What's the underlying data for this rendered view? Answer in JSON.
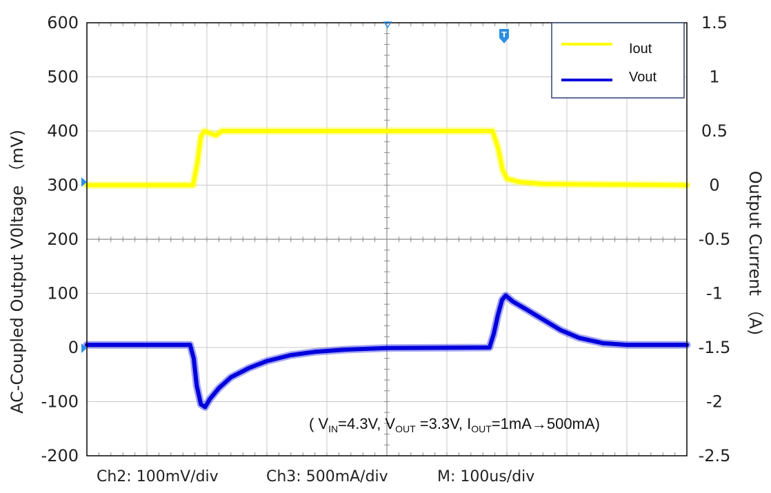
{
  "chart_data": {
    "type": "line",
    "y_left": {
      "label": "AC-Coupled Output V0ltage （mV)",
      "ticks": [
        "600",
        "500",
        "400",
        "300",
        "200",
        "100",
        "0",
        "-100",
        "-200"
      ],
      "lim": [
        -200,
        600
      ]
    },
    "y_right": {
      "label": "Output Current （A)",
      "ticks": [
        "1.5",
        "1",
        "0.5",
        "0",
        "-0.5",
        "-1",
        "-1.5",
        "-2",
        "-2.5"
      ],
      "lim": [
        -2.5,
        1.5
      ]
    },
    "x": {
      "unit": "us",
      "lim": [
        0,
        1000
      ],
      "div": 100
    },
    "series": [
      {
        "name": "Iout",
        "axis": "right",
        "color": "#ffff00",
        "points": [
          [
            0,
            0
          ],
          [
            177,
            0
          ],
          [
            184,
            0.2
          ],
          [
            190,
            0.45
          ],
          [
            196,
            0.5
          ],
          [
            205,
            0.48
          ],
          [
            215,
            0.46
          ],
          [
            225,
            0.5
          ],
          [
            676,
            0.5
          ],
          [
            685,
            0.35
          ],
          [
            693,
            0.14
          ],
          [
            700,
            0.06
          ],
          [
            720,
            0.03
          ],
          [
            760,
            0.01
          ],
          [
            1000,
            0
          ]
        ]
      },
      {
        "name": "Vout",
        "axis": "left",
        "color": "#0000dd",
        "points": [
          [
            0,
            5
          ],
          [
            172,
            5
          ],
          [
            178,
            -20
          ],
          [
            183,
            -70
          ],
          [
            190,
            -105
          ],
          [
            197,
            -110
          ],
          [
            205,
            -95
          ],
          [
            220,
            -75
          ],
          [
            240,
            -55
          ],
          [
            270,
            -38
          ],
          [
            300,
            -25
          ],
          [
            340,
            -14
          ],
          [
            380,
            -8
          ],
          [
            430,
            -4
          ],
          [
            500,
            -1
          ],
          [
            671,
            0
          ],
          [
            678,
            25
          ],
          [
            685,
            60
          ],
          [
            692,
            88
          ],
          [
            698,
            96
          ],
          [
            710,
            85
          ],
          [
            730,
            72
          ],
          [
            760,
            52
          ],
          [
            790,
            32
          ],
          [
            820,
            18
          ],
          [
            860,
            8
          ],
          [
            900,
            5
          ],
          [
            1000,
            5
          ]
        ]
      }
    ],
    "legend": {
      "position": "top-right",
      "entries": [
        "Iout",
        "Vout"
      ]
    },
    "grid": true,
    "annotation": {
      "open": "( V",
      "vin_sub": "IN",
      "vin_val": "=4.3V, V",
      "vout_sub": "OUT",
      "vout_val": " =3.3V, I",
      "iout_sub": "OUT",
      "iout_val": "=1mA→500mA)"
    },
    "footer": {
      "ch2": "Ch2: 100mV/div",
      "ch3": "Ch3: 500mA/div",
      "m": "M: 100us/div"
    },
    "markers": {
      "trigger_label": "T"
    }
  }
}
